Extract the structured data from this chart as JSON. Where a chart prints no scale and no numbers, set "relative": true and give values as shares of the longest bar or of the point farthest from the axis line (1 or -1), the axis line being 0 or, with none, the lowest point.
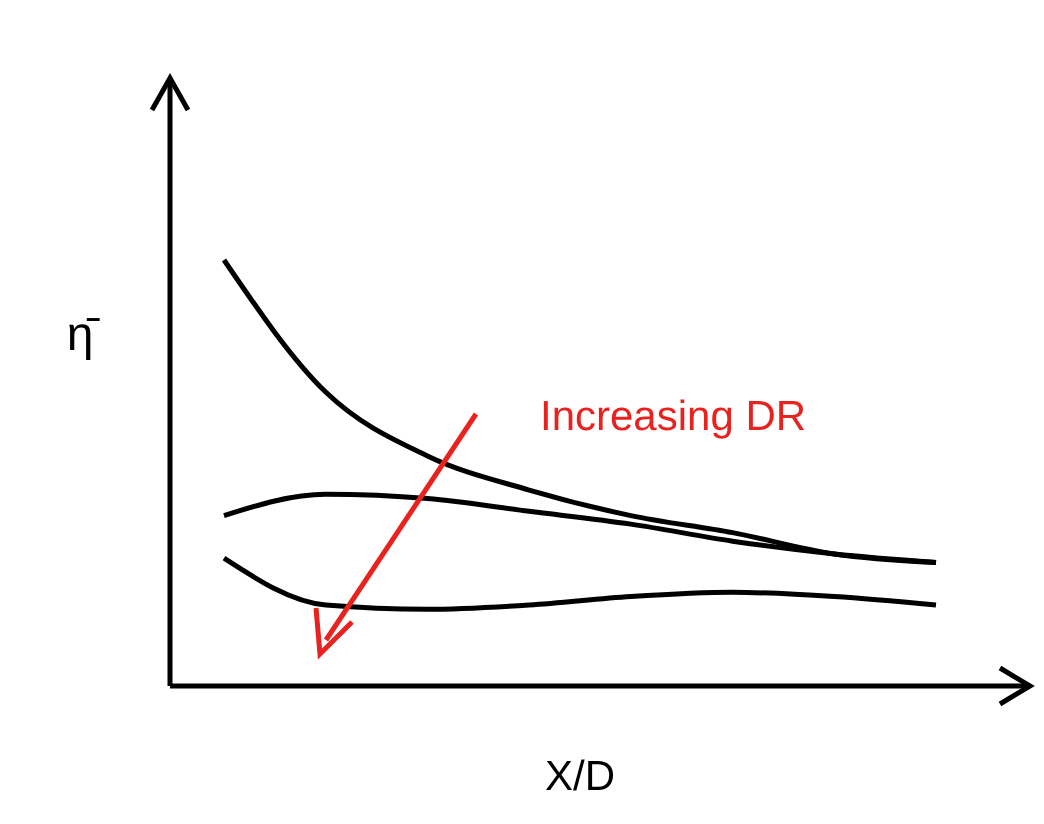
{
  "chart_data": {
    "type": "line",
    "relative": true,
    "xlabel": "X/D",
    "ylabel": "η̄",
    "categories": [
      null,
      null,
      null,
      null,
      null,
      null,
      null,
      null
    ],
    "series": [
      {
        "color": "#000000",
        "values": [
          1,
          0.69,
          0.54,
          0.46,
          0.4,
          0.36,
          0.31,
          0.29
        ]
      },
      {
        "color": "#000000",
        "values": [
          0.4,
          0.45,
          0.44,
          0.41,
          0.38,
          0.34,
          0.31,
          0.29
        ]
      },
      {
        "color": "#000000",
        "values": [
          0.3,
          0.19,
          0.18,
          0.19,
          0.21,
          0.22,
          0.21,
          0.19
        ]
      }
    ],
    "annotations": [
      "Increasing DR"
    ],
    "marker": "none",
    "line_style": "solid"
  }
}
